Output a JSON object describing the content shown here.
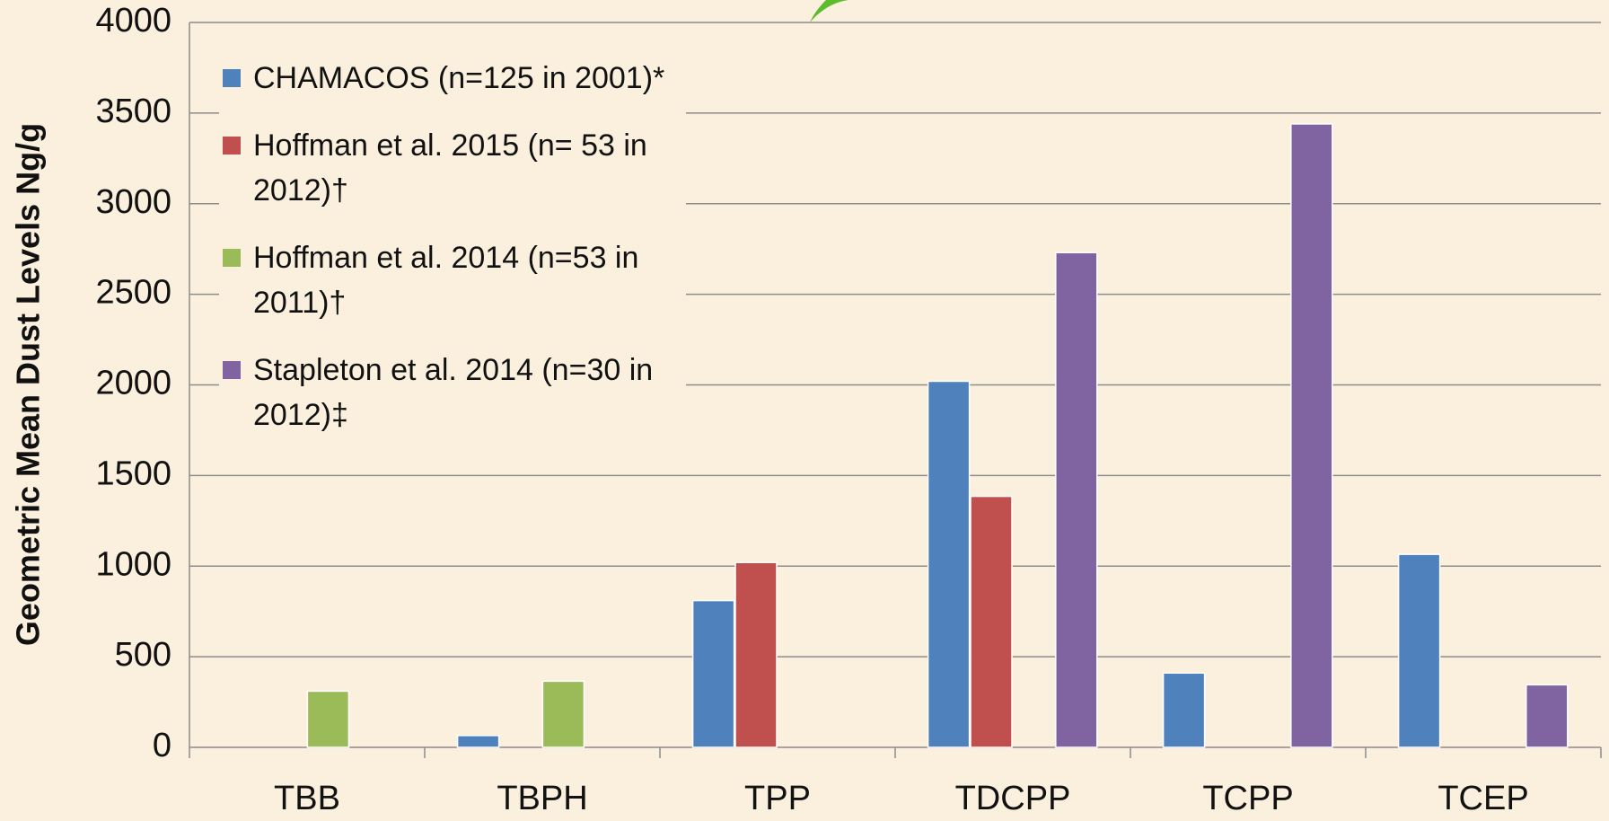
{
  "chart_data": {
    "type": "bar",
    "y_label": "Geometric Mean Dust Levels Ng/g",
    "categories": [
      "TBB",
      "TBPH",
      "TPP",
      "TDCPP",
      "TCPP",
      "TCEP"
    ],
    "series": [
      {
        "name": "CHAMACOS (n=125 in 2001)*",
        "color": "#4f81bd",
        "values": [
          null,
          65,
          810,
          2020,
          410,
          1065
        ]
      },
      {
        "name": "Hoffman et al. 2015 (n= 53 in 2012)†",
        "color": "#c0504d",
        "values": [
          null,
          null,
          1020,
          1385,
          null,
          null
        ]
      },
      {
        "name": "Hoffman et al. 2014 (n=53 in 2011)†",
        "color": "#9bbb59",
        "values": [
          310,
          365,
          null,
          null,
          null,
          null
        ]
      },
      {
        "name": "Stapleton et al. 2014 (n=30 in 2012)‡",
        "color": "#8064a2",
        "values": [
          null,
          null,
          null,
          2730,
          3440,
          345
        ]
      }
    ],
    "ylim": [
      0,
      4000
    ],
    "yticks": [
      0,
      500,
      1000,
      1500,
      2000,
      2500,
      3000,
      3500,
      4000
    ],
    "grid": true
  }
}
